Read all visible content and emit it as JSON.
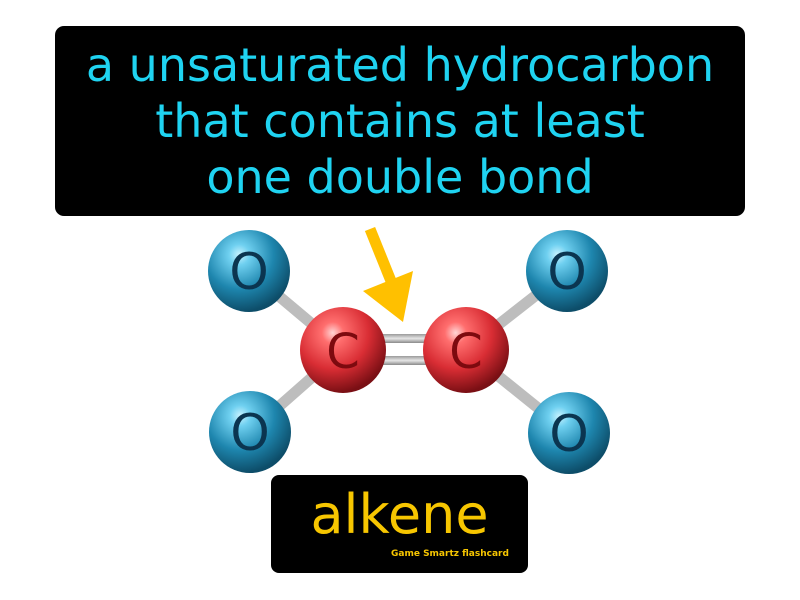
{
  "definition": {
    "lines": [
      "a unsaturated hydrocarbon",
      "that contains at least",
      "one double bond"
    ]
  },
  "molecule": {
    "atoms": [
      "O",
      "O",
      "C",
      "C",
      "O",
      "O"
    ],
    "pointer": "arrow-icon"
  },
  "term": "alkene",
  "brand": "Game Smartz flashcard",
  "colors": {
    "definition_text": "#1fd3f1",
    "term_text": "#f7c600",
    "oxygen": "#1e86ae",
    "carbon": "#d92d34",
    "arrow": "#ffc000"
  }
}
